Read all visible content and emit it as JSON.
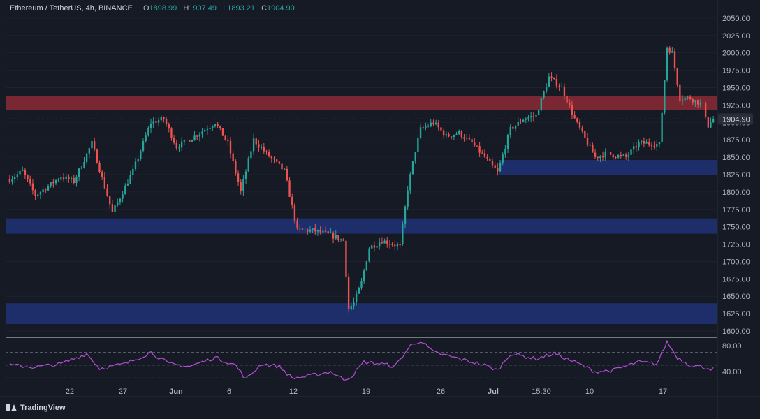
{
  "header": {
    "symbol": "Ethereum / TetherUS, 4h, BINANCE",
    "open_label": "O",
    "open": "1898.99",
    "high_label": "H",
    "high": "1907.49",
    "low_label": "L",
    "low": "1893.21",
    "close_label": "C",
    "close": "1904.90"
  },
  "footer": {
    "brand": "TradingView"
  },
  "colors": {
    "background": "#161a25",
    "up": "#26a69a",
    "down": "#ef5350",
    "resistance_zone": "#8b2a35",
    "support_zone": "#1f2f6e",
    "rsi": "#b64fd6"
  },
  "chart_data": [
    {
      "type": "candlestick",
      "title": "Ethereum / TetherUS, 4h, BINANCE",
      "yaxis_ticks": [
        1600,
        1625,
        1650,
        1675,
        1700,
        1725,
        1750,
        1775,
        1800,
        1825,
        1850,
        1875,
        1900,
        1925,
        1950,
        1975,
        2000,
        2025,
        2050
      ],
      "ytick_labels": [
        "1600.00",
        "1625.00",
        "1650.00",
        "1675.00",
        "1700.00",
        "1725.00",
        "1750.00",
        "1775.00",
        "1800.00",
        "1825.00",
        "1850.00",
        "1875.00",
        "1900.00",
        "1925.00",
        "1950.00",
        "1975.00",
        "2000.00",
        "2025.00",
        "2050.00"
      ],
      "ylim": [
        1592,
        2076
      ],
      "price_label": "1904.90",
      "last_price": 1904.9,
      "xaxis_labels": [
        "22",
        "27",
        "Jun",
        "6",
        "12",
        "19",
        "26",
        "Jul",
        "15:30",
        "10",
        "17"
      ],
      "zones": [
        {
          "kind": "resistance",
          "from": 1918,
          "to": 1938
        },
        {
          "kind": "support",
          "from": 1825,
          "to": 1846,
          "start_index": 191
        },
        {
          "kind": "support",
          "from": 1740,
          "to": 1762
        },
        {
          "kind": "support",
          "from": 1610,
          "to": 1640
        }
      ],
      "anchors": [
        [
          0,
          1818
        ],
        [
          5,
          1830
        ],
        [
          10,
          1795
        ],
        [
          20,
          1822
        ],
        [
          25,
          1815
        ],
        [
          32,
          1870
        ],
        [
          40,
          1770
        ],
        [
          48,
          1830
        ],
        [
          55,
          1900
        ],
        [
          60,
          1905
        ],
        [
          65,
          1865
        ],
        [
          72,
          1880
        ],
        [
          80,
          1900
        ],
        [
          85,
          1870
        ],
        [
          90,
          1800
        ],
        [
          95,
          1875
        ],
        [
          100,
          1855
        ],
        [
          107,
          1830
        ],
        [
          112,
          1745
        ],
        [
          118,
          1745
        ],
        [
          125,
          1738
        ],
        [
          130,
          1730
        ],
        [
          132,
          1632
        ],
        [
          134,
          1640
        ],
        [
          137,
          1670
        ],
        [
          140,
          1720
        ],
        [
          145,
          1730
        ],
        [
          152,
          1722
        ],
        [
          155,
          1805
        ],
        [
          158,
          1860
        ],
        [
          160,
          1890
        ],
        [
          165,
          1900
        ],
        [
          170,
          1880
        ],
        [
          175,
          1885
        ],
        [
          180,
          1870
        ],
        [
          185,
          1850
        ],
        [
          190,
          1828
        ],
        [
          195,
          1890
        ],
        [
          200,
          1905
        ],
        [
          205,
          1910
        ],
        [
          210,
          1965
        ],
        [
          215,
          1950
        ],
        [
          220,
          1905
        ],
        [
          225,
          1870
        ],
        [
          228,
          1850
        ],
        [
          232,
          1855
        ],
        [
          240,
          1850
        ],
        [
          245,
          1870
        ],
        [
          250,
          1870
        ],
        [
          253,
          1868
        ],
        [
          256,
          2008
        ],
        [
          258,
          2000
        ],
        [
          261,
          1935
        ],
        [
          265,
          1935
        ],
        [
          270,
          1925
        ],
        [
          272,
          1895
        ],
        [
          274,
          1904.9
        ]
      ]
    },
    {
      "type": "line",
      "title": "",
      "yaxis_ticks": [
        40,
        80
      ],
      "ytick_labels": [
        "40.00",
        "80.00"
      ],
      "ylim": [
        25,
        90
      ],
      "guides": [
        30,
        50,
        70
      ],
      "anchors": [
        [
          0,
          50
        ],
        [
          10,
          47
        ],
        [
          20,
          52
        ],
        [
          30,
          68
        ],
        [
          35,
          45
        ],
        [
          45,
          52
        ],
        [
          55,
          70
        ],
        [
          62,
          52
        ],
        [
          70,
          48
        ],
        [
          80,
          62
        ],
        [
          88,
          50
        ],
        [
          92,
          28
        ],
        [
          98,
          52
        ],
        [
          105,
          48
        ],
        [
          110,
          30
        ],
        [
          115,
          32
        ],
        [
          125,
          40
        ],
        [
          130,
          28
        ],
        [
          133,
          32
        ],
        [
          138,
          55
        ],
        [
          145,
          52
        ],
        [
          150,
          48
        ],
        [
          156,
          80
        ],
        [
          160,
          88
        ],
        [
          165,
          70
        ],
        [
          175,
          60
        ],
        [
          185,
          50
        ],
        [
          190,
          42
        ],
        [
          195,
          68
        ],
        [
          205,
          60
        ],
        [
          212,
          68
        ],
        [
          220,
          55
        ],
        [
          228,
          40
        ],
        [
          235,
          42
        ],
        [
          245,
          55
        ],
        [
          252,
          52
        ],
        [
          256,
          86
        ],
        [
          260,
          62
        ],
        [
          265,
          50
        ],
        [
          270,
          47
        ],
        [
          274,
          44
        ]
      ]
    }
  ]
}
